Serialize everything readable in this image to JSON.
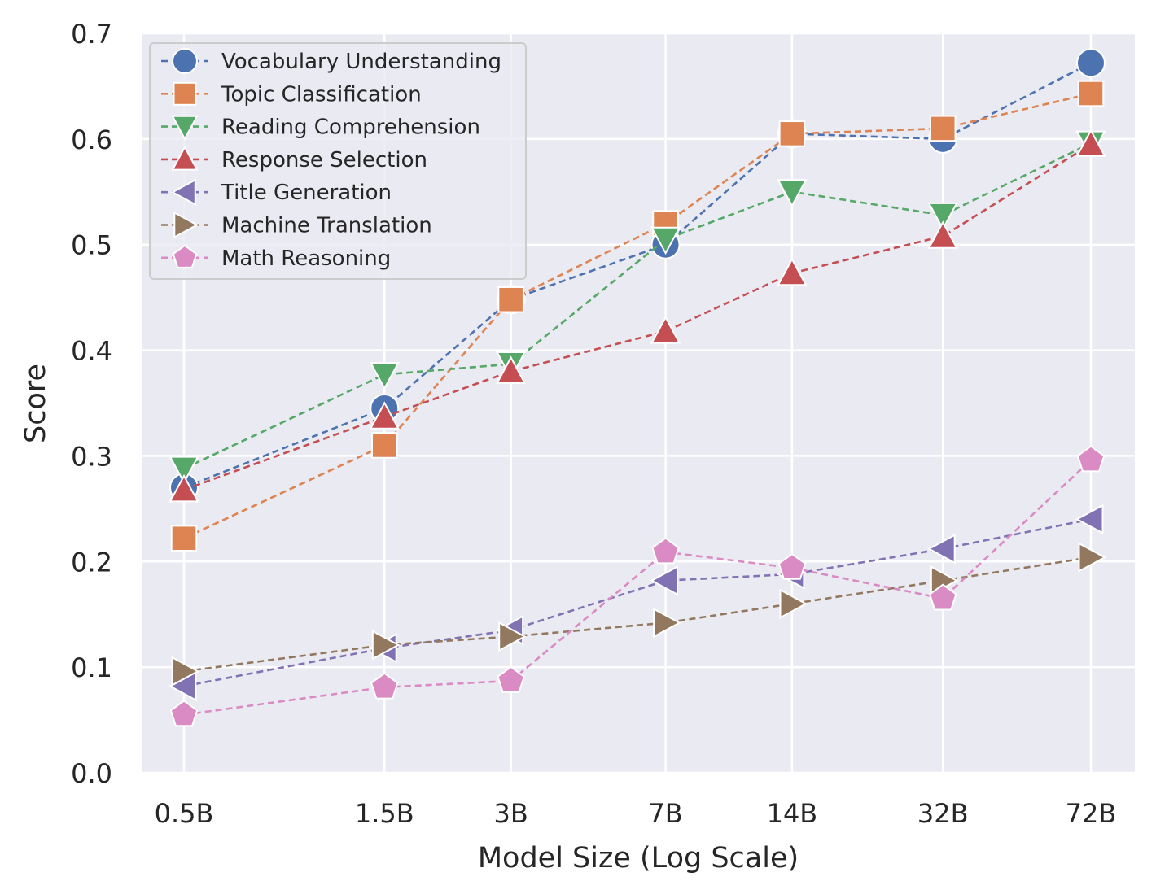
{
  "chart_data": {
    "type": "line",
    "xlabel": "Model Size (Log Scale)",
    "ylabel": "Score",
    "ylim": [
      0.0,
      0.7
    ],
    "x_scale": "log",
    "categories": [
      "0.5B",
      "1.5B",
      "3B",
      "7B",
      "14B",
      "32B",
      "72B"
    ],
    "x": [
      0.5,
      1.5,
      3,
      7,
      14,
      32,
      72
    ],
    "y_ticks": [
      "0.0",
      "0.1",
      "0.2",
      "0.3",
      "0.4",
      "0.5",
      "0.6",
      "0.7"
    ],
    "grid": true,
    "legend_position": "top-left",
    "series": [
      {
        "name": "Vocabulary Understanding",
        "color": "#4c72b0",
        "marker": "circle",
        "values": [
          0.27,
          0.345,
          0.448,
          0.5,
          0.605,
          0.6,
          0.672
        ]
      },
      {
        "name": "Topic Classification",
        "color": "#dd8452",
        "marker": "square",
        "values": [
          0.222,
          0.31,
          0.448,
          0.52,
          0.605,
          0.61,
          0.643
        ]
      },
      {
        "name": "Reading Comprehension",
        "color": "#55a868",
        "marker": "triangle-down",
        "values": [
          0.288,
          0.377,
          0.387,
          0.505,
          0.55,
          0.528,
          0.596
        ]
      },
      {
        "name": "Response Selection",
        "color": "#c44e52",
        "marker": "triangle-up",
        "values": [
          0.268,
          0.337,
          0.38,
          0.418,
          0.473,
          0.508,
          0.595
        ]
      },
      {
        "name": "Title Generation",
        "color": "#8172b3",
        "marker": "triangle-left",
        "values": [
          0.082,
          0.118,
          0.135,
          0.182,
          0.188,
          0.212,
          0.24
        ]
      },
      {
        "name": "Machine Translation",
        "color": "#937860",
        "marker": "triangle-right",
        "values": [
          0.096,
          0.121,
          0.129,
          0.142,
          0.16,
          0.182,
          0.204
        ]
      },
      {
        "name": "Math Reasoning",
        "color": "#da8bc3",
        "marker": "pentagon",
        "values": [
          0.055,
          0.081,
          0.087,
          0.209,
          0.194,
          0.165,
          0.296
        ]
      }
    ]
  }
}
